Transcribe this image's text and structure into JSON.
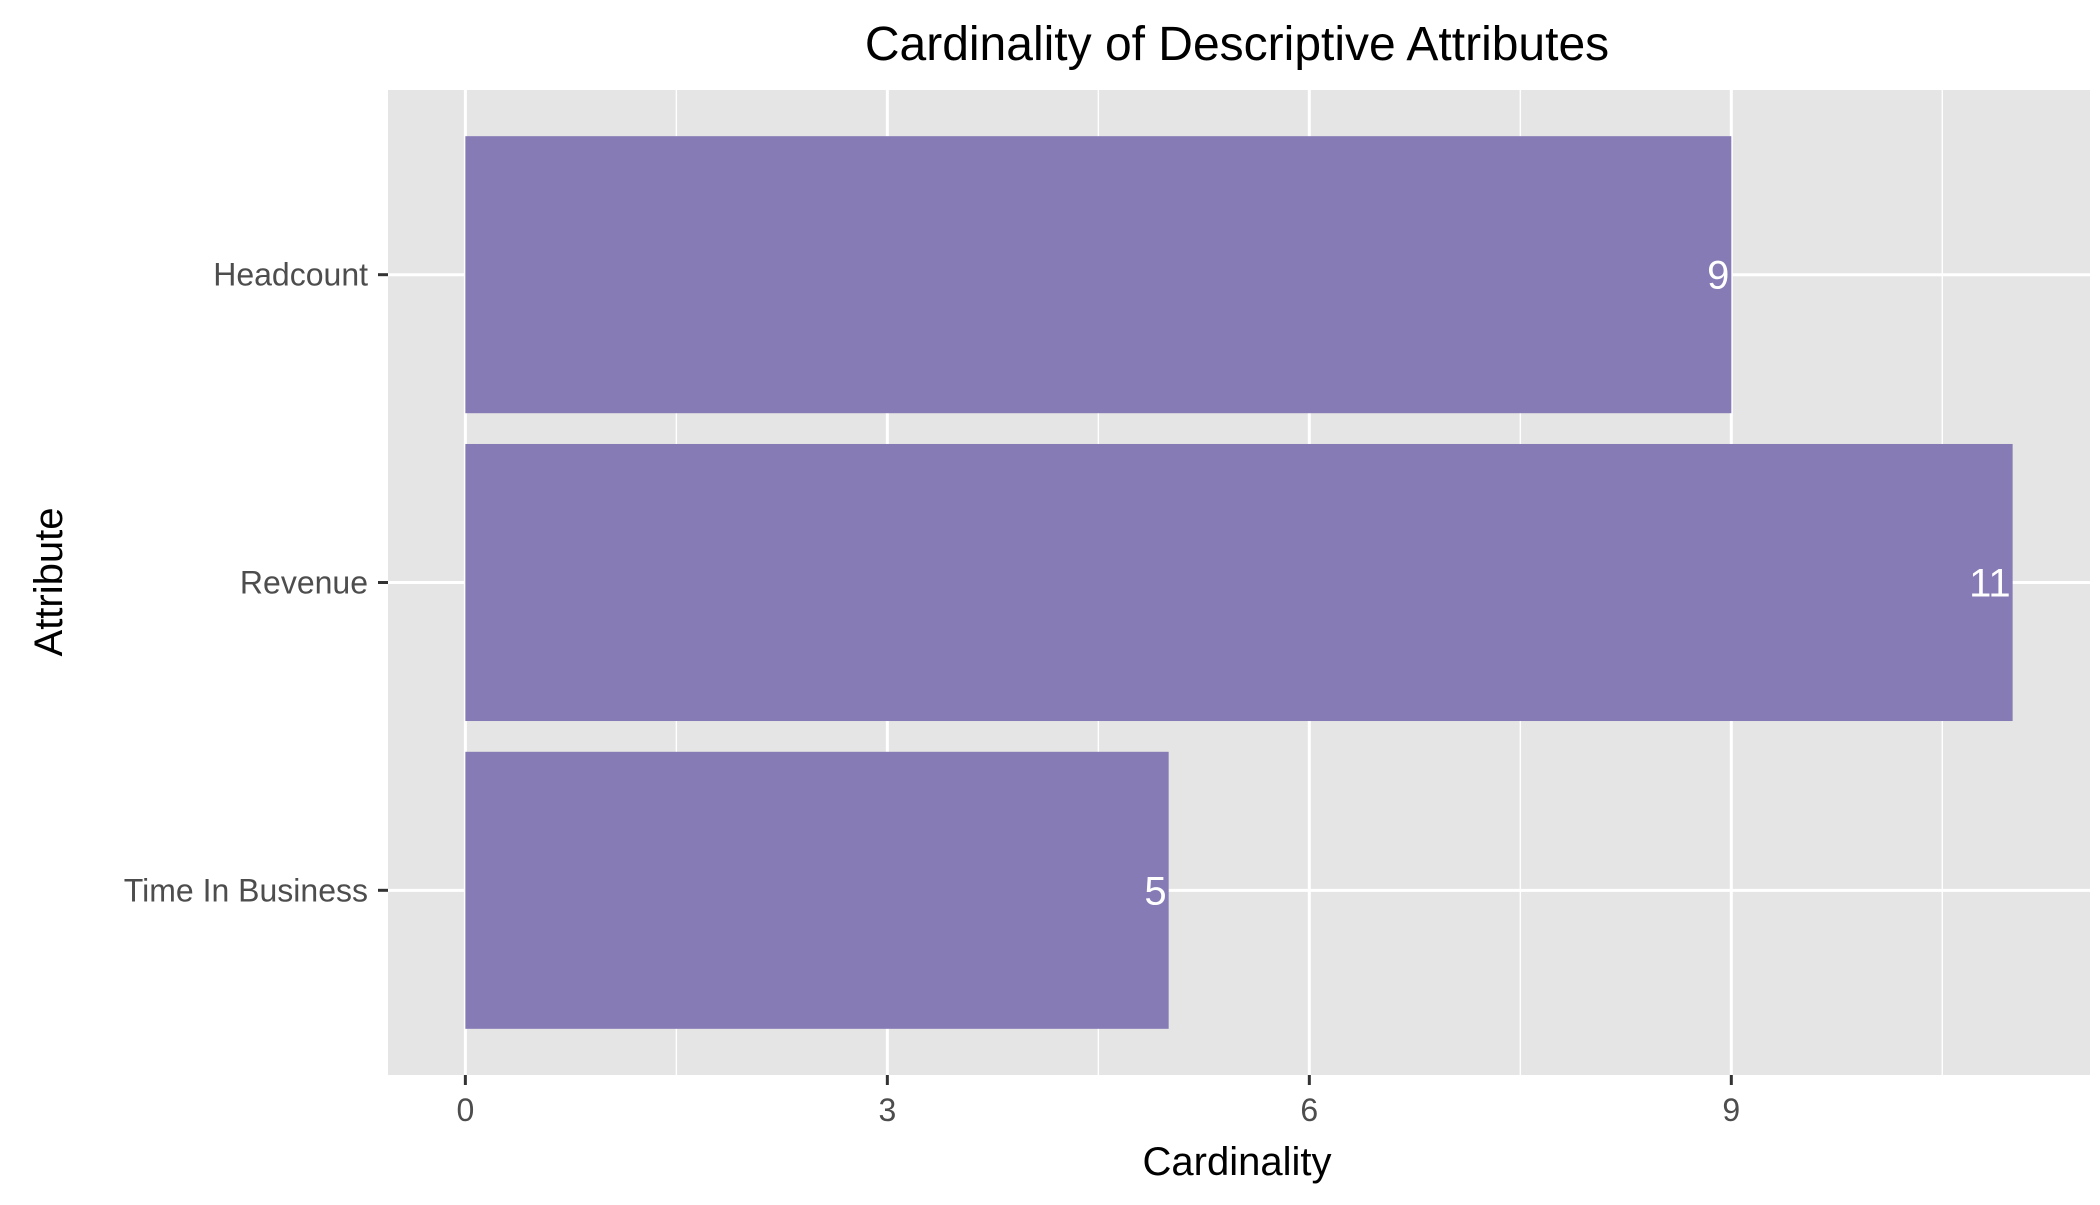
{
  "chart_data": {
    "type": "bar",
    "orientation": "horizontal",
    "title": "Cardinality of Descriptive Attributes",
    "xlabel": "Cardinality",
    "ylabel": "Attribute",
    "categories": [
      "Headcount",
      "Revenue",
      "Time In Business"
    ],
    "values": [
      9,
      11,
      5
    ],
    "data_labels": [
      "9",
      "11",
      "5"
    ],
    "xlim": [
      -0.55,
      11.55
    ],
    "x_ticks": [
      0,
      3,
      6,
      9
    ],
    "x_tick_labels": [
      "0",
      "3",
      "6",
      "9"
    ],
    "grid": true,
    "legend": "none",
    "colors": {
      "bar": "#877bb6",
      "panel": "#e5e5e5",
      "grid": "#ffffff",
      "bar_label": "#ffffff"
    }
  }
}
